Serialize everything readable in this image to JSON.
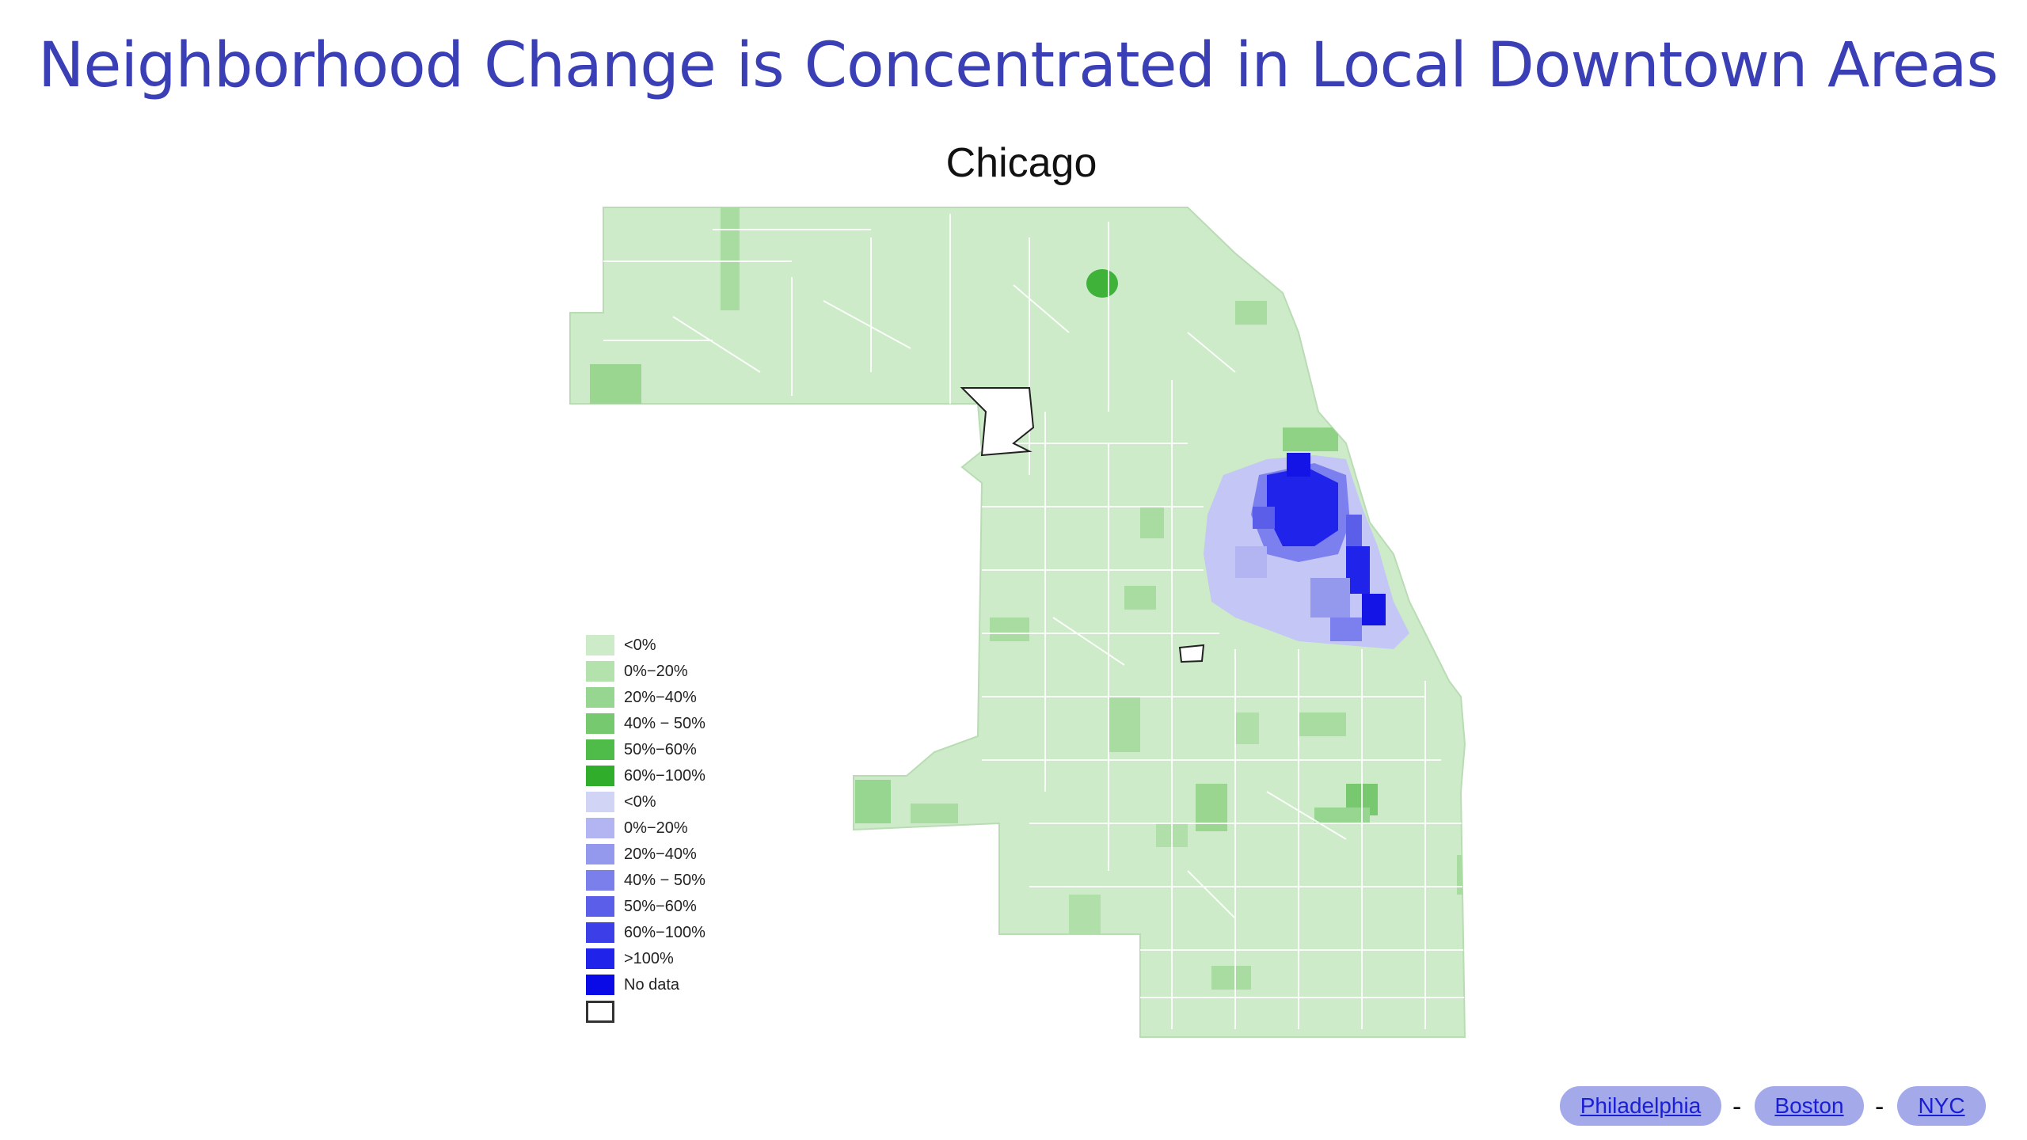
{
  "slide": {
    "title": "Neighborhood Change is Concentrated in Local Downtown  Areas"
  },
  "map": {
    "title": "Chicago",
    "colors": {
      "base_green": "#cdebc8",
      "mid_green": "#9ad68f",
      "strong_green": "#3fb23a",
      "light_blue": "#c4c6f5",
      "mid_blue": "#7c80ee",
      "strong_blue": "#1414e6",
      "boundary_white": "#ffffff"
    }
  },
  "legend": {
    "items": [
      {
        "label": "<0%",
        "color": "#cdebc8"
      },
      {
        "label": "0%−20%",
        "color": "#b4e2ad"
      },
      {
        "label": "20%−40%",
        "color": "#97d690"
      },
      {
        "label": "40% − 50%",
        "color": "#76c96f"
      },
      {
        "label": "50%−60%",
        "color": "#4fbb48"
      },
      {
        "label": "60%−100%",
        "color": "#2fad2b"
      },
      {
        "label": "<0%",
        "color": "#d2d4f6"
      },
      {
        "label": "0%−20%",
        "color": "#b3b5f2"
      },
      {
        "label": "20%−40%",
        "color": "#9599ee"
      },
      {
        "label": "40% − 50%",
        "color": "#7b7fec"
      },
      {
        "label": "50%−60%",
        "color": "#5a5ee8"
      },
      {
        "label": "60%−100%",
        "color": "#3c3fe8"
      },
      {
        "label": ">100%",
        "color": "#2024ea"
      },
      {
        "label": "No data",
        "color": "#0a0ae6"
      }
    ],
    "nodata_color": "#ffffff"
  },
  "nav": {
    "links": [
      {
        "label": "Philadelphia"
      },
      {
        "label": "Boston"
      },
      {
        "label": "NYC"
      }
    ],
    "separator": "-"
  }
}
